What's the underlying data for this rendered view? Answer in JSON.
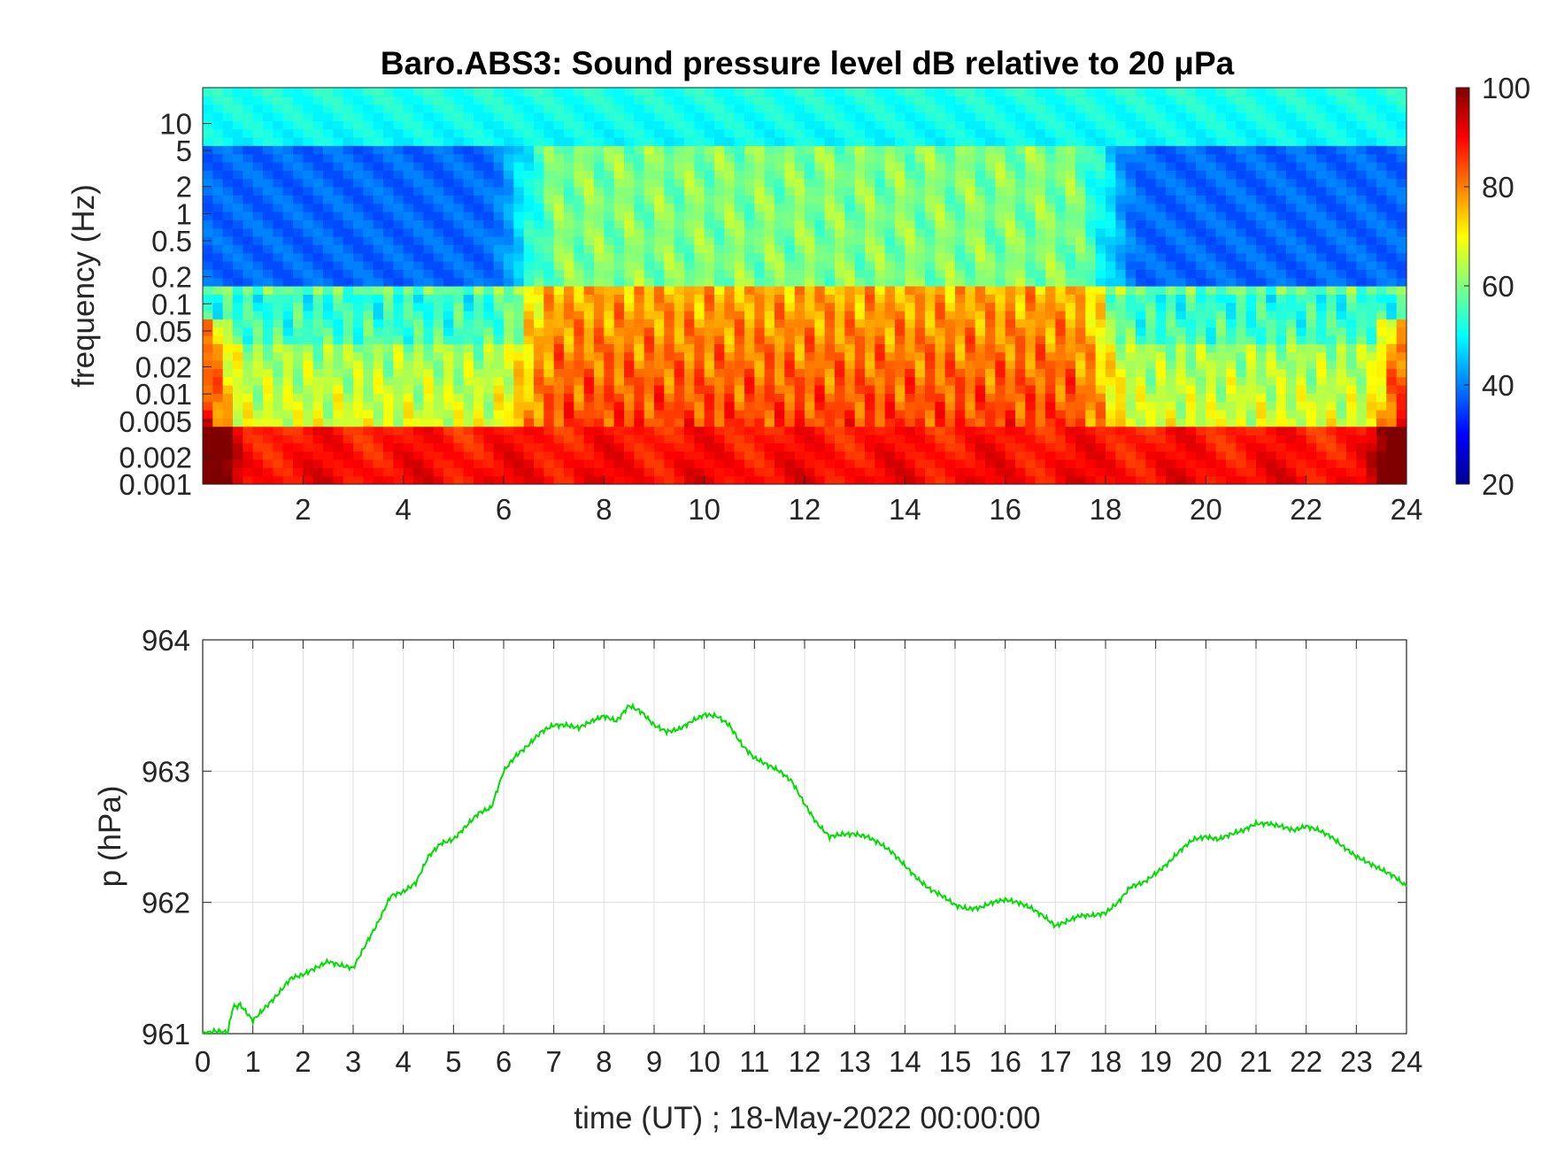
{
  "chart_data": [
    {
      "type": "heatmap",
      "title": "Baro.ABS3: Sound pressure level dB relative to 20 μPa",
      "ylabel": "frequency (Hz)",
      "xlabel": "",
      "x_ticks": [
        "2",
        "4",
        "6",
        "8",
        "10",
        "12",
        "14",
        "16",
        "18",
        "20",
        "22",
        "24"
      ],
      "x_tick_values": [
        2,
        4,
        6,
        8,
        10,
        12,
        14,
        16,
        18,
        20,
        22,
        24
      ],
      "xlim": [
        0,
        24
      ],
      "y_scale": "log",
      "ylim": [
        0.001,
        25
      ],
      "y_ticks": [
        "10",
        "5",
        "2",
        "1",
        "0.5",
        "0.2",
        "0.1",
        "0.05",
        "0.02",
        "0.01",
        "0.005",
        "0.002",
        "0.001"
      ],
      "y_tick_values": [
        10,
        5,
        2,
        1,
        0.5,
        0.2,
        0.1,
        0.05,
        0.02,
        0.01,
        0.005,
        0.002,
        0.001
      ],
      "colormap": "jet",
      "colorbar": {
        "range": [
          20,
          100
        ],
        "ticks": [
          "100",
          "80",
          "60",
          "40",
          "20"
        ],
        "tick_values": [
          100,
          80,
          60,
          40,
          20
        ]
      },
      "description_levels": {
        "quiet_periods_hours": [
          [
            0,
            6.5
          ],
          [
            18,
            24
          ]
        ],
        "active_period_hours": [
          6.5,
          18
        ],
        "quiet_high_freq_dB": 38,
        "active_high_freq_dB": 60,
        "low_freq_dB": 88
      }
    },
    {
      "type": "line",
      "ylabel": "p (hPa)",
      "xlabel": "time (UT) ; 18-May-2022 00:00:00",
      "xlim": [
        0,
        24
      ],
      "ylim": [
        961,
        964
      ],
      "x_ticks": [
        "0",
        "1",
        "2",
        "3",
        "4",
        "5",
        "6",
        "7",
        "8",
        "9",
        "10",
        "11",
        "12",
        "13",
        "14",
        "15",
        "16",
        "17",
        "18",
        "19",
        "20",
        "21",
        "22",
        "23",
        "24"
      ],
      "y_ticks": [
        "964",
        "963",
        "962",
        "961"
      ],
      "y_tick_values": [
        964,
        963,
        962,
        961
      ],
      "grid": true,
      "series": [
        {
          "color": "#00dd00",
          "x": [
            0,
            0.25,
            0.5,
            0.6,
            0.75,
            1.0,
            1.25,
            1.5,
            1.75,
            2.0,
            2.25,
            2.5,
            2.75,
            3.0,
            3.25,
            3.5,
            3.75,
            4.0,
            4.25,
            4.5,
            4.75,
            5.0,
            5.25,
            5.5,
            5.75,
            6.0,
            6.25,
            6.5,
            6.75,
            7.0,
            7.25,
            7.5,
            7.75,
            8.0,
            8.25,
            8.5,
            8.75,
            9.0,
            9.25,
            9.5,
            9.75,
            10.0,
            10.25,
            10.5,
            10.75,
            11.0,
            11.25,
            11.5,
            11.75,
            12.0,
            12.25,
            12.5,
            12.75,
            13.0,
            13.25,
            13.5,
            13.75,
            14.0,
            14.25,
            14.5,
            14.75,
            15.0,
            15.25,
            15.5,
            15.75,
            16.0,
            16.25,
            16.5,
            16.75,
            17.0,
            17.25,
            17.5,
            17.75,
            18.0,
            18.25,
            18.5,
            18.75,
            19.0,
            19.25,
            19.5,
            19.75,
            20.0,
            20.25,
            20.5,
            20.75,
            21.0,
            21.25,
            21.5,
            21.75,
            22.0,
            22.25,
            22.5,
            22.75,
            23.0,
            23.25,
            23.5,
            23.75,
            24.0
          ],
          "y": [
            961.0,
            961.02,
            961.01,
            961.2,
            961.22,
            961.1,
            961.2,
            961.3,
            961.42,
            961.45,
            961.5,
            961.55,
            961.52,
            961.5,
            961.68,
            961.85,
            962.05,
            962.08,
            962.15,
            962.35,
            962.45,
            962.48,
            962.58,
            962.68,
            962.72,
            963.0,
            963.12,
            963.2,
            963.3,
            963.35,
            963.35,
            963.33,
            963.38,
            963.42,
            963.38,
            963.5,
            963.45,
            963.35,
            963.3,
            963.32,
            963.38,
            963.43,
            963.42,
            963.35,
            963.2,
            963.1,
            963.05,
            963.0,
            962.92,
            962.75,
            962.6,
            962.5,
            962.52,
            962.52,
            962.5,
            962.45,
            962.38,
            962.28,
            962.18,
            962.1,
            962.05,
            961.98,
            961.95,
            961.96,
            962.0,
            962.02,
            962.0,
            961.96,
            961.9,
            961.82,
            961.86,
            961.9,
            961.9,
            961.92,
            962.0,
            962.12,
            962.15,
            962.22,
            962.3,
            962.4,
            962.48,
            962.5,
            962.48,
            962.52,
            962.55,
            962.6,
            962.6,
            962.58,
            962.55,
            962.58,
            962.55,
            962.5,
            962.42,
            962.35,
            962.3,
            962.25,
            962.2,
            962.12
          ]
        }
      ]
    }
  ]
}
